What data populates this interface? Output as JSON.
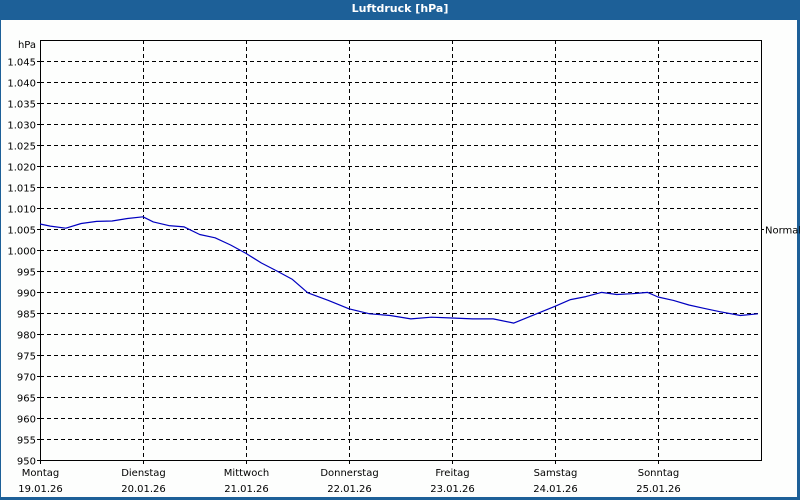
{
  "window": {
    "title": "Luftdruck [hPa]"
  },
  "chart_data": {
    "type": "line",
    "title": "Luftdruck [hPa]",
    "ylabel": "hPa",
    "xlabel": "",
    "ylim": [
      950,
      1045
    ],
    "yticks": [
      950,
      955,
      960,
      965,
      970,
      975,
      980,
      985,
      990,
      995,
      1000,
      1005,
      1010,
      1015,
      1020,
      1025,
      1030,
      1035,
      1040,
      1045
    ],
    "ytick_labels": [
      "950",
      "955",
      "960",
      "965",
      "970",
      "975",
      "980",
      "985",
      "990",
      "995",
      "1.000",
      "1.005",
      "1.010",
      "1.015",
      "1.020",
      "1.025",
      "1.030",
      "1.035",
      "1.040",
      "1.045"
    ],
    "xticks": [
      {
        "day": "Montag",
        "date": "19.01.26"
      },
      {
        "day": "Dienstag",
        "date": "20.01.26"
      },
      {
        "day": "Mittwoch",
        "date": "21.01.26"
      },
      {
        "day": "Donnerstag",
        "date": "22.01.26"
      },
      {
        "day": "Freitag",
        "date": "23.01.26"
      },
      {
        "day": "Samstag",
        "date": "24.01.26"
      },
      {
        "day": "Sonntag",
        "date": "25.01.26"
      }
    ],
    "grid": true,
    "reference_line": {
      "label": "Normal",
      "value": 1005
    },
    "series": [
      {
        "name": "Luftdruck",
        "color": "#0000c0",
        "x_days": [
          0,
          0.1,
          0.25,
          0.4,
          0.55,
          0.7,
          0.85,
          1.0,
          1.1,
          1.25,
          1.4,
          1.55,
          1.7,
          1.85,
          2.0,
          2.15,
          2.3,
          2.45,
          2.6,
          2.8,
          3.0,
          3.2,
          3.4,
          3.6,
          3.8,
          4.0,
          4.2,
          4.4,
          4.6,
          4.8,
          5.0,
          5.15,
          5.3,
          5.45,
          5.6,
          5.75,
          5.9,
          6.0,
          6.15,
          6.3,
          6.45,
          6.6,
          6.8,
          6.97
        ],
        "values": [
          1006.2,
          1005.7,
          1005.2,
          1006.3,
          1006.8,
          1006.9,
          1007.5,
          1007.9,
          1006.7,
          1005.8,
          1005.5,
          1003.7,
          1002.9,
          1001.2,
          999.2,
          996.9,
          995.0,
          993.0,
          989.8,
          988.0,
          986.0,
          984.8,
          984.4,
          983.6,
          984.0,
          983.8,
          983.6,
          983.6,
          982.6,
          984.6,
          986.6,
          988.2,
          988.9,
          989.9,
          989.4,
          989.6,
          989.9,
          988.8,
          988.0,
          986.9,
          986.1,
          985.3,
          984.4,
          984.8
        ]
      }
    ]
  }
}
